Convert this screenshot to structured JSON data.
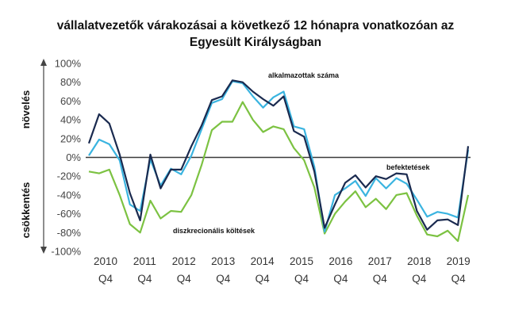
{
  "chart_data": {
    "type": "line",
    "title_lines": [
      "vállalatvezetők várakozásai a következő 12 hónapra vonatkozóan az",
      "Egyesült Királyságban"
    ],
    "ylim": [
      -100,
      100
    ],
    "y_ticks": [
      "100%",
      "80%",
      "60%",
      "40%",
      "20%",
      "0%",
      "-20%",
      "-40%",
      "-60%",
      "-80%",
      "-100%"
    ],
    "y_tick_values": [
      100,
      80,
      60,
      40,
      20,
      0,
      -20,
      -40,
      -60,
      -80,
      -100
    ],
    "x_year_labels": [
      "2010",
      "2011",
      "2012",
      "2013",
      "2014",
      "2015",
      "2016",
      "2017",
      "2018",
      "2019"
    ],
    "x_quarter_labels": [
      "Q4",
      "Q4",
      "Q4",
      "Q4",
      "Q4",
      "Q4",
      "Q4",
      "Q4",
      "Q4",
      "Q4"
    ],
    "x_start": 2010.0,
    "x_step": 0.25,
    "side_labels": {
      "top": "növelés",
      "bottom": "csökkentés"
    },
    "annotations": [
      {
        "text": "alkalmazottak száma",
        "series": 0
      },
      {
        "text": "befektetések",
        "series": 1
      },
      {
        "text": "diszkrecionális költések",
        "series": 2
      }
    ],
    "colors": {
      "employees": "#1a2a4f",
      "investment": "#3ab4e0",
      "discretionary": "#7cc242",
      "zero_line": "#3a3a3a",
      "axis": "#444444"
    },
    "series": [
      {
        "name": "alkalmazottak száma",
        "color": "#1a2a4f",
        "values": [
          15,
          46,
          36,
          3,
          -38,
          -67,
          3,
          -33,
          -13,
          -13,
          12,
          34,
          61,
          65,
          82,
          80,
          70,
          62,
          55,
          65,
          28,
          22,
          -15,
          -75,
          -50,
          -27,
          -19,
          -32,
          -20,
          -23,
          -17,
          -18,
          -57,
          -77,
          -67,
          -66,
          -72,
          12
        ]
      },
      {
        "name": "befektetések",
        "color": "#3ab4e0",
        "values": [
          2,
          19,
          14,
          -3,
          -50,
          -57,
          -2,
          -30,
          -12,
          -18,
          2,
          30,
          58,
          62,
          81,
          79,
          65,
          53,
          64,
          70,
          33,
          30,
          -10,
          -79,
          -40,
          -33,
          -25,
          -41,
          -22,
          -33,
          -22,
          -28,
          -45,
          -63,
          -58,
          -60,
          -64,
          8
        ]
      },
      {
        "name": "diszkrecionális költések",
        "color": "#7cc242",
        "values": [
          -15,
          -17,
          -13,
          -40,
          -71,
          -80,
          -46,
          -65,
          -57,
          -58,
          -40,
          -8,
          29,
          38,
          38,
          59,
          40,
          27,
          33,
          30,
          10,
          -3,
          -32,
          -81,
          -60,
          -47,
          -36,
          -53,
          -44,
          -55,
          -40,
          -38,
          -62,
          -82,
          -84,
          -78,
          -89,
          -40
        ]
      }
    ],
    "grid": false,
    "legend": "none"
  }
}
